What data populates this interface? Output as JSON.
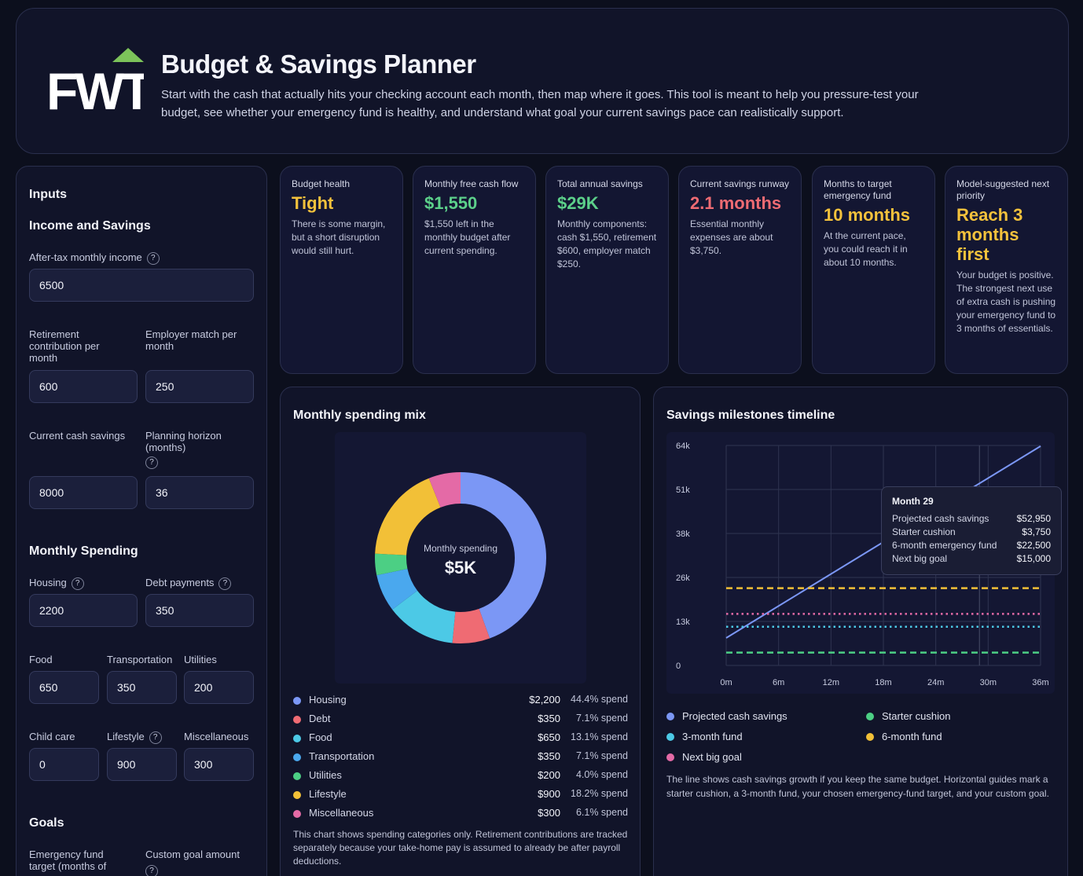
{
  "header": {
    "logo_text": "FWT",
    "title": "Budget & Savings Planner",
    "description": "Start with the cash that actually hits your checking account each month, then map where it goes. This tool is meant to help you pressure-test your budget, see whether your emergency fund is healthy, and understand what goal your current savings pace can realistically support."
  },
  "inputs": {
    "title": "Inputs",
    "income_section": "Income and Savings",
    "after_tax_label": "After-tax monthly income",
    "after_tax_value": "6500",
    "retirement_label": "Retirement contribution per month",
    "retirement_value": "600",
    "employer_match_label": "Employer match per month",
    "employer_match_value": "250",
    "cash_savings_label": "Current cash savings",
    "cash_savings_value": "8000",
    "horizon_label": "Planning horizon (months)",
    "horizon_value": "36",
    "spending_section": "Monthly Spending",
    "housing_label": "Housing",
    "housing_value": "2200",
    "debt_label": "Debt payments",
    "debt_value": "350",
    "food_label": "Food",
    "food_value": "650",
    "transport_label": "Transportation",
    "transport_value": "350",
    "utilities_label": "Utilities",
    "utilities_value": "200",
    "childcare_label": "Child care",
    "childcare_value": "0",
    "lifestyle_label": "Lifestyle",
    "lifestyle_value": "900",
    "misc_label": "Miscellaneous",
    "misc_value": "300",
    "goals_section": "Goals",
    "ef_target_label": "Emergency fund target (months of",
    "custom_goal_label": "Custom goal amount",
    "help_glyph": "?"
  },
  "metrics": [
    {
      "label": "Budget health",
      "value": "Tight",
      "color": "#f4c23c",
      "desc": "There is some margin, but a short disruption would still hurt."
    },
    {
      "label": "Monthly free cash flow",
      "value": "$1,550",
      "color": "#5cd08a",
      "desc": "$1,550 left in the monthly budget after current spending."
    },
    {
      "label": "Total annual savings",
      "value": "$29K",
      "color": "#5cd08a",
      "desc": "Monthly components: cash $1,550, retirement $600, employer match $250."
    },
    {
      "label": "Current savings runway",
      "value": "2.1 months",
      "color": "#ef6b73",
      "desc": "Essential monthly expenses are about $3,750."
    },
    {
      "label": "Months to target emergency fund",
      "value": "10 months",
      "color": "#f4c23c",
      "desc": "At the current pace, you could reach it in about 10 months."
    },
    {
      "label": "Model-suggested next priority",
      "value": "Reach 3 months first",
      "color": "#f4c23c",
      "desc": "Your budget is positive. The strongest next use of extra cash is pushing your emergency fund to 3 months of essentials."
    }
  ],
  "donut": {
    "title": "Monthly spending mix",
    "center_label": "Monthly spending",
    "center_value": "$5K",
    "note": "This chart shows spending categories only. Retirement contributions are tracked separately because your take-home pay is assumed to already be after payroll deductions.",
    "items": [
      {
        "name": "Housing",
        "amount": "$2,200",
        "pct": "44.4% spend",
        "color": "#7b97f5"
      },
      {
        "name": "Debt",
        "amount": "$350",
        "pct": "7.1% spend",
        "color": "#ef6b73"
      },
      {
        "name": "Food",
        "amount": "$650",
        "pct": "13.1% spend",
        "color": "#4cc9e6"
      },
      {
        "name": "Transportation",
        "amount": "$350",
        "pct": "7.1% spend",
        "color": "#4aa8ee"
      },
      {
        "name": "Utilities",
        "amount": "$200",
        "pct": "4.0% spend",
        "color": "#4ccf84"
      },
      {
        "name": "Lifestyle",
        "amount": "$900",
        "pct": "18.2% spend",
        "color": "#f2c037"
      },
      {
        "name": "Miscellaneous",
        "amount": "$300",
        "pct": "6.1% spend",
        "color": "#e46aa6"
      }
    ]
  },
  "chart_data": [
    {
      "type": "pie",
      "title": "Monthly spending mix",
      "categories": [
        "Housing",
        "Debt",
        "Food",
        "Transportation",
        "Utilities",
        "Lifestyle",
        "Miscellaneous"
      ],
      "values": [
        2200,
        350,
        650,
        350,
        200,
        900,
        300
      ],
      "colors": [
        "#7b97f5",
        "#ef6b73",
        "#4cc9e6",
        "#4aa8ee",
        "#4ccf84",
        "#f2c037",
        "#e46aa6"
      ],
      "center_label": "Monthly spending",
      "center_value": "$5K"
    },
    {
      "type": "line",
      "title": "Savings milestones timeline",
      "x_ticks": [
        "0m",
        "6m",
        "12m",
        "18m",
        "24m",
        "30m",
        "36m"
      ],
      "y_ticks": [
        "0",
        "13k",
        "26k",
        "38k",
        "51k",
        "64k"
      ],
      "xlim": [
        0,
        36
      ],
      "ylim": [
        0,
        64000
      ],
      "grid": true,
      "series": [
        {
          "name": "Projected cash savings",
          "color": "#7b97f5",
          "style": "solid",
          "x": [
            0,
            36
          ],
          "y": [
            8000,
            63800
          ]
        },
        {
          "name": "Starter cushion",
          "color": "#4ccf84",
          "style": "dashed",
          "x": [
            0,
            36
          ],
          "y": [
            3750,
            3750
          ]
        },
        {
          "name": "3-month fund",
          "color": "#4cc9e6",
          "style": "dotted",
          "x": [
            0,
            36
          ],
          "y": [
            11250,
            11250
          ]
        },
        {
          "name": "6-month fund",
          "color": "#f2c037",
          "style": "dashed",
          "x": [
            0,
            36
          ],
          "y": [
            22500,
            22500
          ]
        },
        {
          "name": "Next big goal",
          "color": "#e46aa6",
          "style": "dotted",
          "x": [
            0,
            36
          ],
          "y": [
            15000,
            15000
          ]
        }
      ],
      "highlight_month": 29
    }
  ],
  "timeline": {
    "title": "Savings milestones timeline",
    "note": "The line shows cash savings growth if you keep the same budget. Horizontal guides mark a starter cushion, a 3-month fund, your chosen emergency-fund target, and your custom goal.",
    "legend": [
      {
        "name": "Projected cash savings",
        "color": "#7b97f5"
      },
      {
        "name": "Starter cushion",
        "color": "#4ccf84"
      },
      {
        "name": "3-month fund",
        "color": "#4cc9e6"
      },
      {
        "name": "6-month fund",
        "color": "#f2c037"
      },
      {
        "name": "Next big goal",
        "color": "#e46aa6"
      }
    ],
    "tooltip": {
      "title": "Month 29",
      "rows": [
        {
          "label": "Projected cash savings",
          "value": "$52,950"
        },
        {
          "label": "Starter cushion",
          "value": "$3,750"
        },
        {
          "label": "6-month emergency fund",
          "value": "$22,500"
        },
        {
          "label": "Next big goal",
          "value": "$15,000"
        }
      ]
    }
  }
}
